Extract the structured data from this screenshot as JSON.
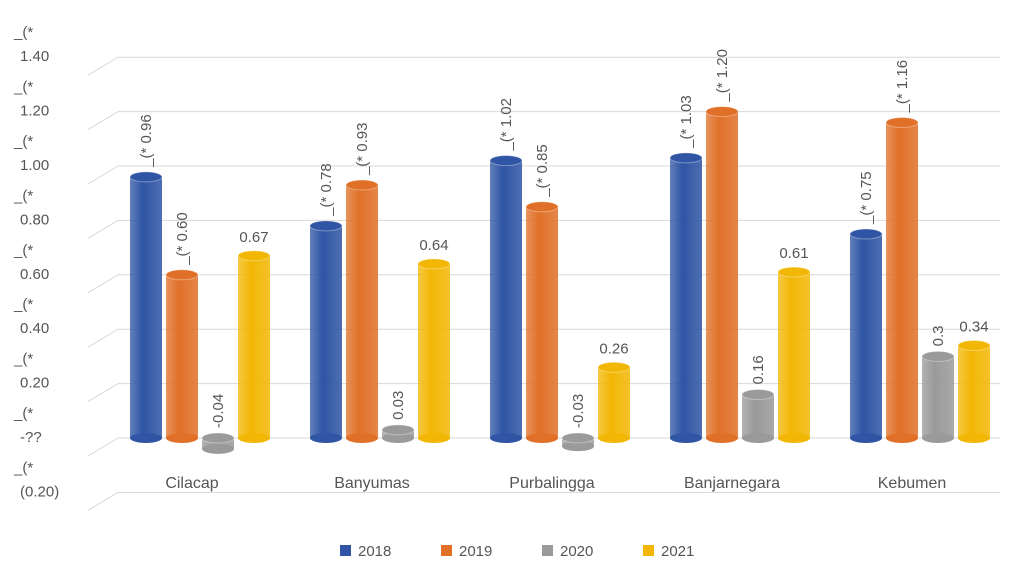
{
  "chart_data": {
    "type": "bar",
    "title": "",
    "xlabel": "",
    "ylabel": "",
    "categories": [
      "Cilacap",
      "Banyumas",
      "Purbalingga",
      "Banjarnegara",
      "Kebumen"
    ],
    "series": [
      {
        "name": "2018",
        "color": "#2f55a4",
        "values": [
          0.96,
          0.78,
          1.02,
          1.03,
          0.75
        ],
        "labels": [
          "_(* 0.96",
          "_(* 0.78",
          "_(* 1.02",
          "_(* 1.03",
          "_(* 0.75"
        ],
        "label_rotated": true
      },
      {
        "name": "2019",
        "color": "#e07028",
        "values": [
          0.6,
          0.93,
          0.85,
          1.2,
          1.16
        ],
        "labels": [
          "_(* 0.60",
          "_(* 0.93",
          "_(* 0.85",
          "_(* 1.20",
          "_(* 1.16"
        ],
        "label_rotated": true
      },
      {
        "name": "2020",
        "color": "#9a9a9a",
        "values": [
          -0.04,
          0.03,
          -0.03,
          0.16,
          0.3
        ],
        "labels": [
          "-0.04",
          "0.03",
          "-0.03",
          "0.16",
          "0.3"
        ],
        "label_rotated": true
      },
      {
        "name": "2021",
        "color": "#f2b705",
        "values": [
          0.67,
          0.64,
          0.26,
          0.61,
          0.34
        ],
        "labels": [
          "0.67",
          "0.64",
          "0.26",
          "0.61",
          "0.34"
        ],
        "label_rotated": false
      }
    ],
    "yticks": [
      {
        "value": 1.4,
        "label": "1.40"
      },
      {
        "value": 1.2,
        "label": "1.20"
      },
      {
        "value": 1.0,
        "label": "1.00"
      },
      {
        "value": 0.8,
        "label": "0.80"
      },
      {
        "value": 0.6,
        "label": "0.60"
      },
      {
        "value": 0.4,
        "label": "0.40"
      },
      {
        "value": 0.2,
        "label": "0.20"
      },
      {
        "value": 0.0,
        "label": "-??"
      },
      {
        "value": -0.2,
        "label": "(0.20)"
      }
    ],
    "ytick_prefix": "_(*",
    "ylim": [
      -0.2,
      1.4
    ],
    "grid": true,
    "legend_position": "bottom"
  }
}
